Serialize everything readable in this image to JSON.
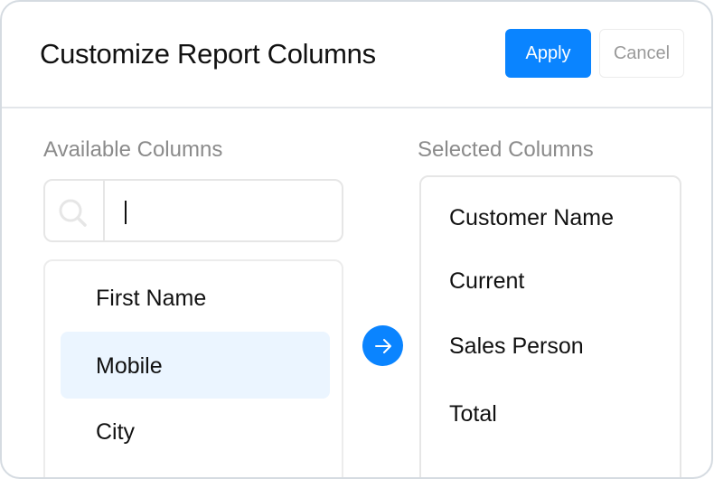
{
  "dialog": {
    "title": "Customize Report Columns",
    "apply_label": "Apply",
    "cancel_label": "Cancel"
  },
  "available": {
    "label": "Available Columns",
    "search_value": "",
    "items": [
      "First Name",
      "Mobile",
      "City"
    ],
    "highlighted": "Mobile"
  },
  "selected": {
    "label": "Selected Columns",
    "items": [
      "Customer Name",
      "Current",
      "Sales Person",
      "Total"
    ]
  },
  "colors": {
    "accent": "#0a84ff",
    "highlight": "#ebf5ff"
  },
  "icons": {
    "search": "search-icon",
    "move": "arrow-right-icon"
  }
}
